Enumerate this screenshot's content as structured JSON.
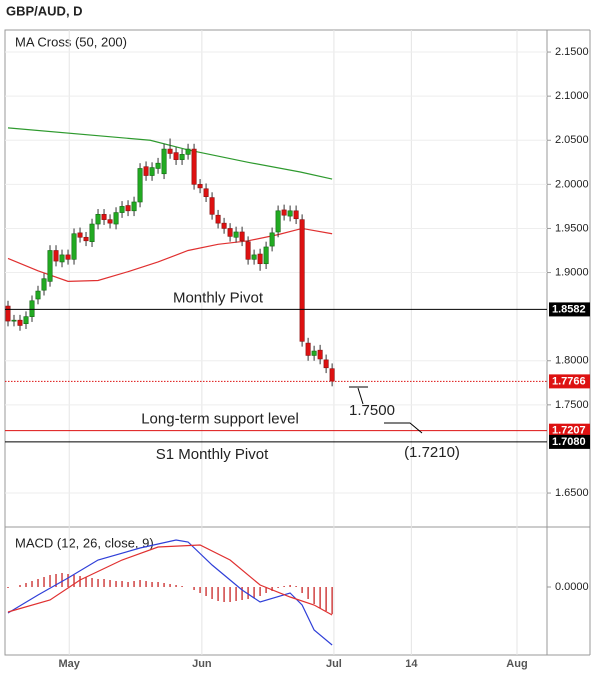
{
  "chart_data": [
    {
      "type": "candlestick",
      "title": "GBP/AUD, D",
      "label": "MA Cross (50, 200)",
      "xlim": [
        -0.5,
        89.8
      ],
      "xticks": [
        {
          "value": 10.2,
          "label": "May"
        },
        {
          "value": 32.3,
          "label": "Jun"
        },
        {
          "value": 54.3,
          "label": "Jul"
        },
        {
          "value": 67.2,
          "label": "14"
        },
        {
          "value": 84.8,
          "label": "Aug"
        }
      ],
      "ylim": [
        1.6115,
        2.175
      ],
      "yticks": [
        {
          "value": 1.65,
          "label": "1.6500"
        },
        {
          "value": 1.75,
          "label": "1.7500"
        },
        {
          "value": 1.8,
          "label": "1.8000"
        },
        {
          "value": 1.9,
          "label": "1.9000"
        },
        {
          "value": 1.95,
          "label": "1.9500"
        },
        {
          "value": 2.0,
          "label": "2.0000"
        },
        {
          "value": 2.05,
          "label": "2.0500"
        },
        {
          "value": 2.1,
          "label": "2.1000"
        },
        {
          "value": 2.15,
          "label": "2.1500"
        }
      ],
      "grid": true,
      "up_color": "#22aa22",
      "down_color": "#dd1111",
      "open": [
        1.862,
        1.845,
        1.846,
        1.842,
        1.85,
        1.87,
        1.88,
        1.89,
        1.925,
        1.912,
        1.92,
        1.915,
        1.945,
        1.94,
        1.935,
        1.955,
        1.966,
        1.96,
        1.955,
        1.968,
        1.976,
        1.97,
        1.98,
        2.02,
        2.01,
        2.018,
        2.012,
        2.04,
        2.036,
        2.028,
        2.034,
        2.04,
        2.0,
        1.995,
        1.985,
        1.965,
        1.956,
        1.95,
        1.94,
        1.946,
        1.935,
        1.915,
        1.921,
        1.91,
        1.93,
        1.946,
        1.971,
        1.964,
        1.97,
        1.96,
        1.82,
        1.806,
        1.812,
        1.801,
        1.791
      ],
      "high": [
        1.868,
        1.852,
        1.852,
        1.856,
        1.874,
        1.885,
        1.899,
        1.931,
        1.931,
        1.926,
        1.926,
        1.95,
        1.951,
        1.946,
        1.961,
        1.972,
        1.972,
        1.966,
        1.974,
        1.981,
        1.982,
        1.986,
        2.024,
        2.026,
        2.025,
        2.03,
        2.046,
        2.052,
        2.042,
        2.04,
        2.046,
        2.046,
        2.006,
        2.001,
        1.991,
        1.971,
        1.962,
        1.956,
        1.952,
        1.952,
        1.941,
        1.926,
        1.927,
        1.935,
        1.951,
        1.976,
        1.977,
        1.976,
        1.976,
        1.966,
        1.826,
        1.817,
        1.818,
        1.807,
        1.797
      ],
      "low": [
        1.839,
        1.839,
        1.834,
        1.836,
        1.844,
        1.864,
        1.874,
        1.884,
        1.907,
        1.906,
        1.909,
        1.909,
        1.934,
        1.93,
        1.929,
        1.949,
        1.954,
        1.95,
        1.949,
        1.962,
        1.964,
        1.964,
        1.974,
        2.004,
        2.004,
        2.012,
        2.006,
        2.029,
        2.022,
        2.022,
        2.028,
        1.994,
        1.99,
        1.98,
        1.96,
        1.95,
        1.944,
        1.935,
        1.934,
        1.93,
        1.909,
        1.909,
        1.902,
        1.904,
        1.924,
        1.94,
        1.959,
        1.958,
        1.955,
        1.816,
        1.8,
        1.8,
        1.796,
        1.786,
        1.771
      ],
      "close": [
        1.845,
        1.846,
        1.84,
        1.85,
        1.868,
        1.879,
        1.893,
        1.925,
        1.913,
        1.92,
        1.915,
        1.944,
        1.94,
        1.936,
        1.955,
        1.966,
        1.96,
        1.956,
        1.968,
        1.975,
        1.97,
        1.98,
        2.018,
        2.01,
        2.019,
        2.024,
        2.04,
        2.035,
        2.028,
        2.034,
        2.04,
        2.0,
        1.996,
        1.986,
        1.966,
        1.956,
        1.95,
        1.941,
        1.946,
        1.936,
        1.915,
        1.92,
        1.91,
        1.929,
        1.945,
        1.97,
        1.965,
        1.97,
        1.961,
        1.822,
        1.806,
        1.811,
        1.802,
        1.792,
        1.777
      ],
      "lines": [
        {
          "color": "#2e9a2e",
          "x": [
            0,
            23.7,
            30,
            40,
            48.7,
            54
          ],
          "values": [
            2.064,
            2.05,
            2.039,
            2.025,
            2.014,
            2.006
          ]
        },
        {
          "color": "#e03030",
          "x": [
            0,
            5,
            10,
            15,
            20,
            25,
            30,
            35,
            40,
            45,
            49,
            54
          ],
          "values": [
            1.916,
            1.902,
            1.89,
            1.891,
            1.901,
            1.912,
            1.925,
            1.932,
            1.936,
            1.943,
            1.95,
            1.944
          ]
        }
      ],
      "levels": [
        {
          "name": "Monthly Pivot",
          "value": 1.8582,
          "color": "#000000"
        },
        {
          "value": 1.7766,
          "color": "#dd1111",
          "style": "dotted"
        },
        {
          "name": "Long-term support level",
          "value": 1.7207,
          "color": "#dd1111"
        },
        {
          "name": "S1 Monthly Pivot",
          "value": 1.708,
          "label": "1.7080",
          "color": "#000000"
        }
      ],
      "annotations": [
        "1.7500",
        "(1.7210)"
      ]
    },
    {
      "type": "macd",
      "label": "MACD (12, 26, close, 9)",
      "xlim": [
        -0.5,
        89.8
      ],
      "ylim": [
        -0.068,
        0.06
      ],
      "yticks": [
        {
          "value": 0,
          "label": "0.0000"
        }
      ],
      "histogram_color": "#cc3333",
      "histogram": [
        -0.001,
        0,
        0.002,
        0.004,
        0.006,
        0.008,
        0.01,
        0.012,
        0.013,
        0.014,
        0.013,
        0.012,
        0.011,
        0.01,
        0.009,
        0.008,
        0.008,
        0.007,
        0.006,
        0.006,
        0.005,
        0.006,
        0.007,
        0.006,
        0.005,
        0.005,
        0.004,
        0.003,
        0.002,
        0.001,
        0,
        -0.003,
        -0.006,
        -0.009,
        -0.012,
        -0.014,
        -0.015,
        -0.015,
        -0.014,
        -0.013,
        -0.012,
        -0.011,
        -0.009,
        -0.006,
        -0.004,
        -0.001,
        0.001,
        0.002,
        0.001,
        -0.006,
        -0.012,
        -0.017,
        -0.021,
        -0.024,
        -0.027
      ],
      "lines": [
        {
          "color": "#2f3fd8",
          "x": [
            0,
            5,
            10,
            15,
            22,
            28,
            30,
            34,
            39,
            42,
            47,
            49,
            51,
            54
          ],
          "values": [
            -0.026,
            -0.008,
            0.009,
            0.027,
            0.039,
            0.047,
            0.045,
            0.022,
            -0.003,
            -0.015,
            -0.006,
            -0.018,
            -0.043,
            -0.058
          ]
        },
        {
          "color": "#e03030",
          "x": [
            0,
            7,
            12,
            19,
            25,
            32,
            37,
            42,
            47,
            51,
            54
          ],
          "values": [
            -0.025,
            -0.013,
            0.007,
            0.027,
            0.04,
            0.042,
            0.027,
            0.002,
            -0.01,
            -0.018,
            -0.028
          ]
        }
      ]
    }
  ]
}
